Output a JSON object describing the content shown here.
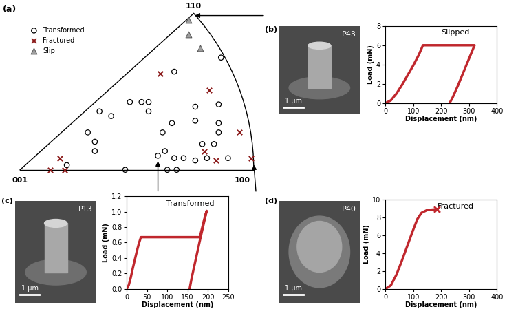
{
  "chart_data": [
    {
      "type": "scatter",
      "panel": "(a)",
      "tick_labels": false,
      "legend": "upper left",
      "corner_labels": [
        "001",
        "100",
        "110"
      ],
      "xlim": [
        -0.05,
        1.05
      ],
      "ylim": [
        -0.08,
        0.7
      ],
      "series": [
        {
          "name": "Transformed",
          "marker": "circle",
          "color": "#000000",
          "x": [
            0.2,
            0.45,
            0.59,
            0.63,
            0.67,
            0.62,
            0.66,
            0.7,
            0.75,
            0.8,
            0.89,
            0.29,
            0.32,
            0.32,
            0.34,
            0.39,
            0.47,
            0.52,
            0.55,
            0.55,
            0.66,
            0.61,
            0.65,
            0.75,
            0.75,
            0.85,
            0.85,
            0.85,
            0.78,
            0.83,
            0.86
          ],
          "values": [
            0.02,
            0.0,
            0.06,
            0.0,
            0.0,
            0.08,
            0.05,
            0.05,
            0.04,
            0.05,
            0.05,
            0.16,
            0.12,
            0.08,
            0.25,
            0.23,
            0.29,
            0.29,
            0.29,
            0.25,
            0.42,
            0.16,
            0.2,
            0.27,
            0.21,
            0.2,
            0.16,
            0.28,
            0.11,
            0.11,
            0.48
          ]
        },
        {
          "name": "Fractured",
          "marker": "x",
          "color": "#8b1a1a",
          "x": [
            0.17,
            0.13,
            0.19,
            0.6,
            0.81,
            0.79,
            0.84,
            0.94,
            0.99
          ],
          "values": [
            0.05,
            0.0,
            0.0,
            0.41,
            0.34,
            0.08,
            0.04,
            0.16,
            0.05
          ]
        },
        {
          "name": "Slip",
          "marker": "triangle",
          "color": "#9e9e9e",
          "x": [
            0.72,
            0.72,
            0.77
          ],
          "values": [
            0.64,
            0.58,
            0.52
          ]
        }
      ]
    },
    {
      "type": "line",
      "panel": "(b)",
      "image": {
        "label": "P43",
        "scale_bar": "1 μm"
      },
      "annotation": "Slipped",
      "x_label": "Displacement (nm)",
      "y_label": "Load (mN)",
      "xlim": [
        0,
        400
      ],
      "xticks": [
        0,
        100,
        200,
        300,
        400
      ],
      "ylim": [
        0,
        8
      ],
      "yticks": [
        0,
        2,
        4,
        6,
        8
      ],
      "series": [
        {
          "color": "#c0272d",
          "line_style": "solid",
          "x": [
            0,
            20,
            40,
            60,
            80,
            100,
            120,
            135,
            320,
            300,
            280,
            260,
            240,
            230
          ],
          "values": [
            0,
            0.3,
            1.0,
            1.9,
            2.9,
            3.9,
            5.0,
            6.0,
            6.0,
            4.6,
            3.2,
            1.8,
            0.5,
            0
          ]
        }
      ]
    },
    {
      "type": "line",
      "panel": "(c)",
      "image": {
        "label": "P13",
        "scale_bar": "1 μm"
      },
      "annotation": "Transformed",
      "x_label": "Displacement (nm)",
      "y_label": "Load (mN)",
      "xlim": [
        0,
        250
      ],
      "xticks": [
        0,
        50,
        100,
        150,
        200,
        250
      ],
      "ylim": [
        0,
        1.2
      ],
      "yticks": [
        {
          "value": 0,
          "label": "0.0"
        },
        0.2,
        0.4,
        0.6,
        0.8,
        {
          "value": 1,
          "label": "1.0"
        },
        1.2
      ],
      "series": [
        {
          "color": "#c0272d",
          "line_style": "solid",
          "x": [
            0,
            5,
            10,
            15,
            20,
            25,
            30,
            35,
            62,
            180,
            185,
            190,
            197,
            190,
            180,
            170,
            160,
            155
          ],
          "values": [
            0,
            0.05,
            0.15,
            0.27,
            0.38,
            0.49,
            0.59,
            0.67,
            0.67,
            0.67,
            0.77,
            0.88,
            1.01,
            0.85,
            0.62,
            0.38,
            0.14,
            0
          ]
        }
      ]
    },
    {
      "type": "line",
      "panel": "(d)",
      "image": {
        "label": "P40",
        "scale_bar": "1 μm"
      },
      "annotation": "Fractured",
      "x_label": "Displacement (nm)",
      "y_label": "Load (mN)",
      "xlim": [
        0,
        400
      ],
      "xticks": [
        0,
        100,
        200,
        300,
        400
      ],
      "ylim": [
        0,
        10
      ],
      "yticks": [
        0,
        2,
        4,
        6,
        8,
        10
      ],
      "series": [
        {
          "color": "#c0272d",
          "line_style": "solid",
          "x": [
            0,
            20,
            40,
            60,
            80,
            100,
            115,
            130,
            150,
            185
          ],
          "values": [
            0,
            0.4,
            1.6,
            3.2,
            4.9,
            6.6,
            7.8,
            8.5,
            8.8,
            8.9
          ]
        },
        {
          "type": "scatter",
          "color": "#c0272d",
          "marker": "x",
          "x": [
            185
          ],
          "values": [
            8.9
          ]
        }
      ]
    }
  ]
}
